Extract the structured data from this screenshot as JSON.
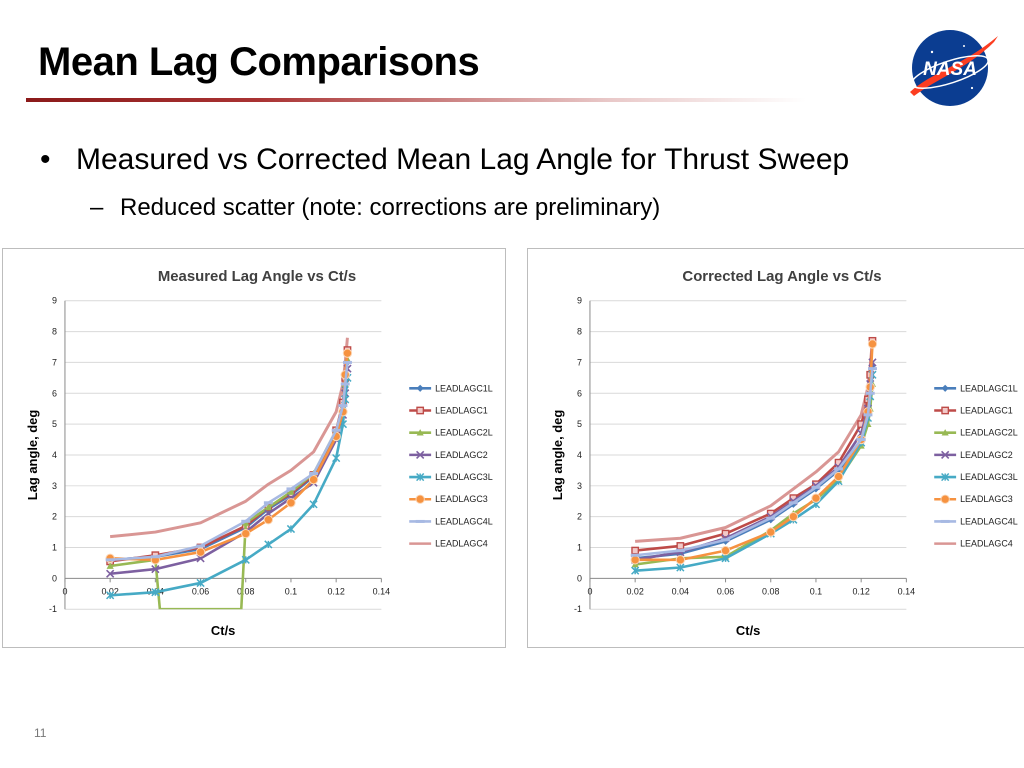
{
  "slide": {
    "title": "Mean Lag Comparisons",
    "bullet": "Measured vs Corrected Mean Lag Angle for Thrust Sweep",
    "bullet_marker": "•",
    "sub_bullet": "Reduced scatter (note: corrections are preliminary)",
    "sub_marker": "–",
    "page_number": "11",
    "logo_text": "NASA"
  },
  "colors": {
    "LEADLAGC1L": "#4a7ebb",
    "LEADLAGC1": "#be4b48",
    "LEADLAGC2L": "#98b954",
    "LEADLAGC2": "#7d60a0",
    "LEADLAGC3L": "#46aac5",
    "LEADLAGC3": "#f69240",
    "LEADLAGC4L": "#a7b9e3",
    "LEADLAGC4": "#d99694"
  },
  "chart_data": [
    {
      "type": "line",
      "title": "Measured Lag Angle vs Ct/s",
      "xlabel": "Ct/s",
      "ylabel": "Lag angle, deg",
      "xlim": [
        0,
        0.14
      ],
      "ylim": [
        -1,
        9
      ],
      "xticks": [
        "0",
        "0.02",
        "0.04",
        "0.06",
        "0.08",
        "0.1",
        "0.12",
        "0.14"
      ],
      "yticks": [
        "-1",
        "0",
        "1",
        "2",
        "3",
        "4",
        "5",
        "6",
        "7",
        "8",
        "9"
      ],
      "grid": "horizontal",
      "legend": "right",
      "series": [
        {
          "name": "LEADLAGC1L",
          "marker": "diamond",
          "x": [
            0.02,
            0.04,
            0.06,
            0.08,
            0.09,
            0.1,
            0.11,
            0.12,
            0.123,
            0.124,
            0.125
          ],
          "y": [
            0.6,
            0.7,
            0.95,
            1.65,
            2.25,
            2.7,
            3.3,
            4.7,
            5.5,
            6.2,
            7.0
          ]
        },
        {
          "name": "LEADLAGC1",
          "marker": "square",
          "x": [
            0.02,
            0.04,
            0.06,
            0.08,
            0.09,
            0.1,
            0.11,
            0.12,
            0.123,
            0.124,
            0.125
          ],
          "y": [
            0.55,
            0.75,
            1.0,
            1.7,
            2.3,
            2.75,
            3.35,
            4.8,
            5.7,
            6.5,
            7.4
          ]
        },
        {
          "name": "LEADLAGC2L",
          "marker": "triangle",
          "x": [
            0.02,
            0.04,
            0.042,
            0.078,
            0.08,
            0.09,
            0.1,
            0.11,
            0.12,
            0.123,
            0.124,
            0.125
          ],
          "y": [
            0.4,
            0.6,
            -1.0,
            -1.0,
            1.8,
            2.3,
            2.8,
            3.4,
            4.8,
            5.5,
            6.3,
            7.1
          ]
        },
        {
          "name": "LEADLAGC2",
          "marker": "cross",
          "x": [
            0.02,
            0.04,
            0.06,
            0.08,
            0.09,
            0.1,
            0.11,
            0.12,
            0.123,
            0.124,
            0.125
          ],
          "y": [
            0.15,
            0.3,
            0.65,
            1.5,
            2.1,
            2.6,
            3.1,
            4.5,
            5.3,
            6.0,
            6.8
          ]
        },
        {
          "name": "LEADLAGC3L",
          "marker": "star",
          "x": [
            0.02,
            0.04,
            0.06,
            0.08,
            0.09,
            0.1,
            0.11,
            0.12,
            0.123,
            0.124,
            0.125
          ],
          "y": [
            -0.55,
            -0.45,
            -0.15,
            0.6,
            1.1,
            1.6,
            2.4,
            3.9,
            5.0,
            5.8,
            6.5
          ]
        },
        {
          "name": "LEADLAGC3",
          "marker": "circle",
          "x": [
            0.02,
            0.04,
            0.06,
            0.08,
            0.09,
            0.1,
            0.11,
            0.12,
            0.123,
            0.124,
            0.125
          ],
          "y": [
            0.65,
            0.6,
            0.85,
            1.45,
            1.9,
            2.45,
            3.2,
            4.6,
            5.4,
            6.6,
            7.3
          ]
        },
        {
          "name": "LEADLAGC4L",
          "marker": "dash",
          "x": [
            0.02,
            0.04,
            0.06,
            0.08,
            0.09,
            0.1,
            0.11,
            0.12,
            0.123,
            0.124,
            0.125
          ],
          "y": [
            0.6,
            0.7,
            1.05,
            1.85,
            2.45,
            2.9,
            3.4,
            4.8,
            5.6,
            6.3,
            7.0
          ]
        },
        {
          "name": "LEADLAGC4",
          "marker": "none",
          "x": [
            0.02,
            0.04,
            0.06,
            0.08,
            0.09,
            0.1,
            0.11,
            0.12,
            0.123,
            0.124,
            0.125
          ],
          "y": [
            1.35,
            1.5,
            1.8,
            2.5,
            3.05,
            3.5,
            4.1,
            5.4,
            6.3,
            7.0,
            7.8
          ]
        }
      ]
    },
    {
      "type": "line",
      "title": "Corrected Lag Angle vs Ct/s",
      "xlabel": "Ct/s",
      "ylabel": "Lag angle, deg",
      "xlim": [
        0,
        0.14
      ],
      "ylim": [
        -1,
        9
      ],
      "xticks": [
        "0",
        "0.02",
        "0.04",
        "0.06",
        "0.08",
        "0.1",
        "0.12",
        "0.14"
      ],
      "yticks": [
        "-1",
        "0",
        "1",
        "2",
        "3",
        "4",
        "5",
        "6",
        "7",
        "8",
        "9"
      ],
      "grid": "horizontal",
      "legend": "right",
      "series": [
        {
          "name": "LEADLAGC1L",
          "marker": "diamond",
          "x": [
            0.02,
            0.04,
            0.06,
            0.08,
            0.09,
            0.1,
            0.11,
            0.12,
            0.123,
            0.124,
            0.125
          ],
          "y": [
            0.65,
            0.8,
            1.2,
            1.9,
            2.4,
            2.9,
            3.5,
            4.4,
            5.3,
            6.1,
            6.9
          ]
        },
        {
          "name": "LEADLAGC1",
          "marker": "square",
          "x": [
            0.02,
            0.04,
            0.06,
            0.08,
            0.09,
            0.1,
            0.11,
            0.12,
            0.123,
            0.124,
            0.125
          ],
          "y": [
            0.9,
            1.05,
            1.45,
            2.1,
            2.6,
            3.05,
            3.75,
            5.0,
            5.8,
            6.6,
            7.7
          ]
        },
        {
          "name": "LEADLAGC2L",
          "marker": "triangle",
          "x": [
            0.02,
            0.04,
            0.06,
            0.08,
            0.09,
            0.1,
            0.11,
            0.12,
            0.123,
            0.124,
            0.125
          ],
          "y": [
            0.45,
            0.65,
            0.7,
            1.55,
            2.1,
            2.55,
            3.2,
            4.3,
            5.0,
            5.5,
            6.3
          ]
        },
        {
          "name": "LEADLAGC2",
          "marker": "cross",
          "x": [
            0.02,
            0.04,
            0.06,
            0.08,
            0.09,
            0.1,
            0.11,
            0.12,
            0.123,
            0.124,
            0.125
          ],
          "y": [
            0.6,
            0.85,
            1.3,
            2.0,
            2.5,
            3.0,
            3.6,
            4.7,
            5.5,
            6.3,
            7.0
          ]
        },
        {
          "name": "LEADLAGC3L",
          "marker": "star",
          "x": [
            0.02,
            0.04,
            0.06,
            0.08,
            0.09,
            0.1,
            0.11,
            0.12,
            0.123,
            0.124,
            0.125
          ],
          "y": [
            0.25,
            0.35,
            0.65,
            1.45,
            1.9,
            2.4,
            3.15,
            4.4,
            5.2,
            5.9,
            6.6
          ]
        },
        {
          "name": "LEADLAGC3",
          "marker": "circle",
          "x": [
            0.02,
            0.04,
            0.06,
            0.08,
            0.09,
            0.1,
            0.11,
            0.12,
            0.123,
            0.124,
            0.125
          ],
          "y": [
            0.6,
            0.6,
            0.9,
            1.5,
            2.0,
            2.6,
            3.3,
            4.5,
            5.4,
            6.2,
            7.6
          ]
        },
        {
          "name": "LEADLAGC4L",
          "marker": "dash",
          "x": [
            0.02,
            0.04,
            0.06,
            0.08,
            0.09,
            0.1,
            0.11,
            0.12,
            0.123,
            0.124,
            0.125
          ],
          "y": [
            0.75,
            0.9,
            1.25,
            1.95,
            2.45,
            2.95,
            3.55,
            4.5,
            5.3,
            6.0,
            6.8
          ]
        },
        {
          "name": "LEADLAGC4",
          "marker": "none",
          "x": [
            0.02,
            0.04,
            0.06,
            0.08,
            0.09,
            0.1,
            0.11,
            0.12,
            0.123,
            0.124,
            0.125
          ],
          "y": [
            1.2,
            1.3,
            1.65,
            2.35,
            2.9,
            3.45,
            4.1,
            5.3,
            6.2,
            6.9,
            7.7
          ]
        }
      ]
    }
  ]
}
